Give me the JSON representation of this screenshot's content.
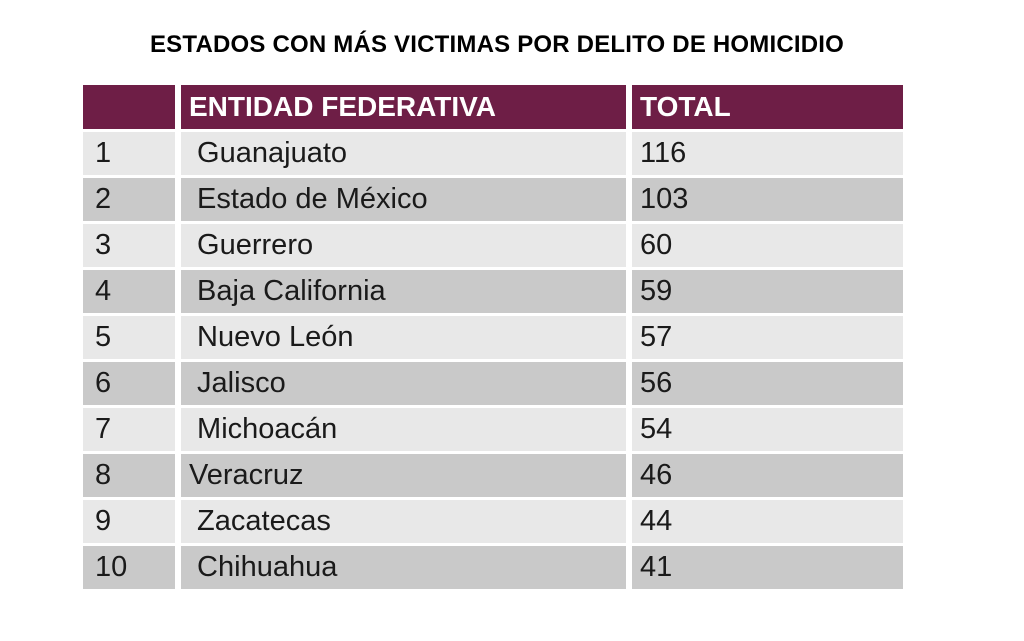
{
  "title": "ESTADOS CON MÁS VICTIMAS POR DELITO DE HOMICIDIO",
  "chart_data": {
    "type": "table",
    "title": "ESTADOS CON MÁS VICTIMAS POR DELITO DE HOMICIDIO",
    "columns": [
      "",
      "ENTIDAD FEDERATIVA",
      "TOTAL"
    ],
    "categories": [
      "Guanajuato",
      "Estado de México",
      "Guerrero",
      "Baja California",
      "Nuevo León",
      "Jalisco",
      "Michoacán",
      "Veracruz",
      "Zacatecas",
      "Chihuahua"
    ],
    "values": [
      116,
      103,
      60,
      59,
      57,
      56,
      54,
      46,
      44,
      41
    ],
    "rows": [
      [
        "1",
        " Guanajuato",
        "116"
      ],
      [
        "2",
        " Estado de México",
        "103"
      ],
      [
        "3",
        " Guerrero",
        "60"
      ],
      [
        "4",
        " Baja California",
        "59"
      ],
      [
        "5",
        " Nuevo León",
        "57"
      ],
      [
        "6",
        " Jalisco",
        "56"
      ],
      [
        "7",
        " Michoacán",
        "54"
      ],
      [
        "8",
        "Veracruz",
        "46"
      ],
      [
        "9",
        " Zacatecas",
        "44"
      ],
      [
        "10",
        " Chihuahua",
        "41"
      ]
    ]
  },
  "colors": {
    "header_bg": "#6E1E46",
    "header_text": "#FFFFFF",
    "row_light": "#E8E8E8",
    "row_dark": "#C9C9C9",
    "body_text": "#1A1A1A",
    "title_text": "#000000"
  }
}
